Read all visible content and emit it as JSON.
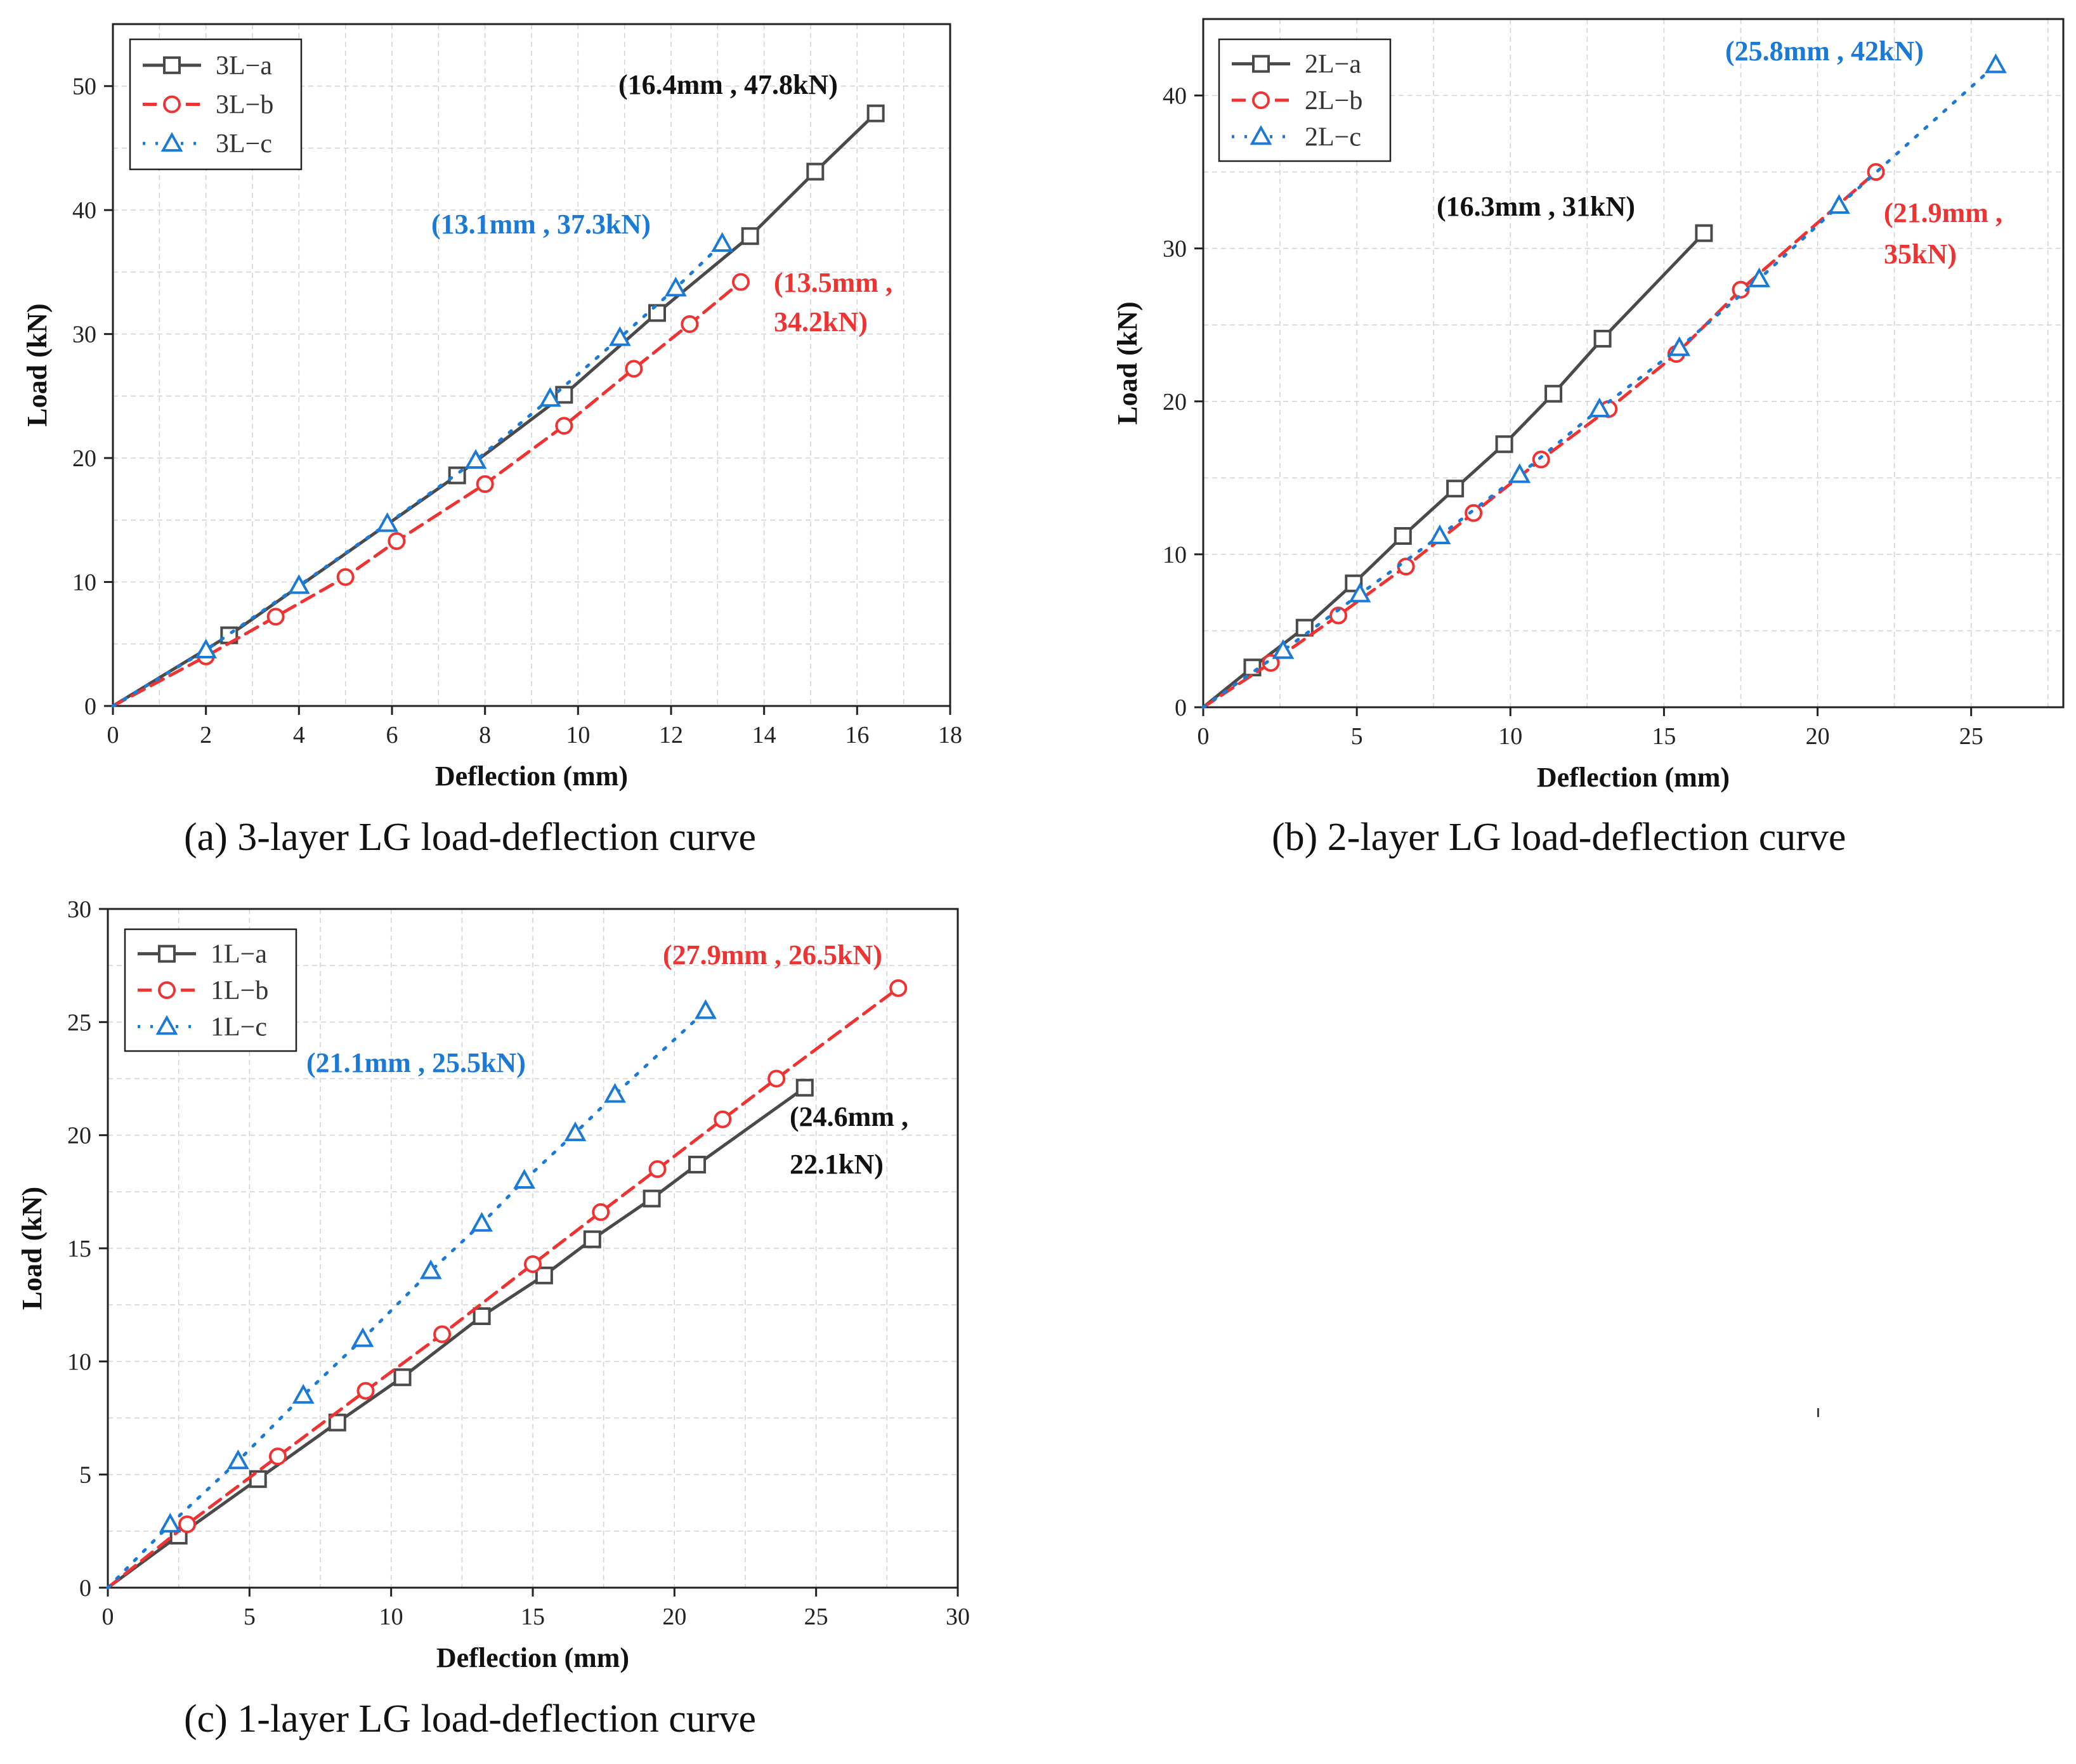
{
  "colors": {
    "a": "#4a4a4a",
    "b": "#ee3333",
    "c": "#1a7ad6",
    "text_black": "#111111"
  },
  "chart_data": [
    {
      "id": "a",
      "type": "line",
      "caption": "(a)  3-layer LG load-deflection curve",
      "xlabel": "Deflection (mm)",
      "ylabel": "Load (kN)",
      "xlim": [
        0,
        18
      ],
      "ylim": [
        0,
        55
      ],
      "xticks": [
        0,
        2,
        4,
        6,
        8,
        10,
        12,
        14,
        16,
        18
      ],
      "yticks": [
        0,
        10,
        20,
        30,
        40,
        50
      ],
      "legend_position": "top-left",
      "series": [
        {
          "key": "a",
          "name": "3L−a",
          "marker": "square",
          "dash": "solid",
          "x": [
            0,
            2.5,
            7.4,
            9.7,
            11.7,
            13.7,
            15.1,
            16.4
          ],
          "y": [
            0,
            5.7,
            18.6,
            25.1,
            31.7,
            37.9,
            43.1,
            47.8
          ]
        },
        {
          "key": "b",
          "name": "3L−b",
          "marker": "circle",
          "dash": "dashed",
          "x": [
            0,
            2,
            3.5,
            5,
            6.1,
            8,
            9.7,
            11.2,
            12.4,
            13.5
          ],
          "y": [
            0,
            4,
            7.2,
            10.4,
            13.3,
            17.9,
            22.6,
            27.2,
            30.8,
            34.2
          ]
        },
        {
          "key": "c",
          "name": "3L−c",
          "marker": "triangle",
          "dash": "dotted",
          "x": [
            0,
            2,
            4,
            5.9,
            7.8,
            9.4,
            10.9,
            12.1,
            13.1
          ],
          "y": [
            0,
            4.5,
            9.7,
            14.7,
            19.8,
            24.8,
            29.7,
            33.7,
            37.3
          ]
        }
      ],
      "annotations": [
        {
          "key": "a",
          "lines": [
            "(16.4mm , 47.8kN)"
          ]
        },
        {
          "key": "c",
          "lines": [
            "(13.1mm , 37.3kN)"
          ]
        },
        {
          "key": "b",
          "lines": [
            "(13.5mm ,",
            "34.2kN)"
          ]
        }
      ]
    },
    {
      "id": "b",
      "type": "line",
      "caption": "(b)  2-layer LG load-deflection curve",
      "xlabel": "Deflection (mm)",
      "ylabel": "Load (kN)",
      "xlim": [
        0,
        28
      ],
      "ylim": [
        0,
        45
      ],
      "xticks": [
        0,
        5,
        10,
        15,
        20,
        25
      ],
      "yticks": [
        0,
        10,
        20,
        30,
        40
      ],
      "legend_position": "top-left",
      "series": [
        {
          "key": "a",
          "name": "2L−a",
          "marker": "square",
          "dash": "solid",
          "x": [
            0,
            1.6,
            3.3,
            4.9,
            6.5,
            8.2,
            9.8,
            11.4,
            13,
            16.3
          ],
          "y": [
            0,
            2.6,
            5.2,
            8.1,
            11.2,
            14.3,
            17.2,
            20.5,
            24.1,
            31
          ]
        },
        {
          "key": "b",
          "name": "2L−b",
          "marker": "circle",
          "dash": "dashed",
          "x": [
            0,
            2.2,
            4.4,
            6.6,
            8.8,
            11,
            13.2,
            15.4,
            17.5,
            21.9
          ],
          "y": [
            0,
            2.9,
            6,
            9.2,
            12.7,
            16.2,
            19.5,
            23.1,
            27.3,
            35
          ]
        },
        {
          "key": "c",
          "name": "2L−c",
          "marker": "triangle",
          "dash": "dotted",
          "x": [
            0,
            2.6,
            5.1,
            7.7,
            10.3,
            12.9,
            15.5,
            18.1,
            20.7,
            25.8
          ],
          "y": [
            0,
            3.7,
            7.4,
            11.2,
            15.2,
            19.5,
            23.5,
            28,
            32.8,
            42
          ]
        }
      ],
      "annotations": [
        {
          "key": "a",
          "lines": [
            "(16.3mm , 31kN)"
          ]
        },
        {
          "key": "c",
          "lines": [
            "(25.8mm , 42kN)"
          ]
        },
        {
          "key": "b",
          "lines": [
            "(21.9mm ,",
            "35kN)"
          ]
        }
      ]
    },
    {
      "id": "c",
      "type": "line",
      "caption": "(c)  1-layer LG load-deflection curve",
      "xlabel": "Deflection (mm)",
      "ylabel": "Load (kN)",
      "xlim": [
        0,
        30
      ],
      "ylim": [
        0,
        30
      ],
      "xticks": [
        0,
        5,
        10,
        15,
        20,
        25,
        30
      ],
      "yticks": [
        0,
        5,
        10,
        15,
        20,
        25,
        30
      ],
      "legend_position": "top-left",
      "series": [
        {
          "key": "a",
          "name": "1L−a",
          "marker": "square",
          "dash": "solid",
          "x": [
            0,
            2.5,
            5.3,
            8.1,
            10.4,
            13.2,
            15.4,
            17.1,
            19.2,
            20.8,
            24.6
          ],
          "y": [
            0,
            2.3,
            4.8,
            7.3,
            9.3,
            12,
            13.8,
            15.4,
            17.2,
            18.7,
            22.1
          ]
        },
        {
          "key": "b",
          "name": "1L−b",
          "marker": "circle",
          "dash": "dashed",
          "x": [
            0,
            2.8,
            6,
            9.1,
            11.8,
            15,
            17.4,
            19.4,
            21.7,
            23.6,
            27.9
          ],
          "y": [
            0,
            2.8,
            5.8,
            8.7,
            11.2,
            14.3,
            16.6,
            18.5,
            20.7,
            22.5,
            26.5
          ]
        },
        {
          "key": "c",
          "name": "1L−c",
          "marker": "triangle",
          "dash": "dotted",
          "x": [
            0,
            2.2,
            4.6,
            6.9,
            9,
            11.4,
            13.2,
            14.7,
            16.5,
            17.9,
            21.1
          ],
          "y": [
            0,
            2.8,
            5.6,
            8.5,
            11,
            14,
            16.1,
            18,
            20.1,
            21.8,
            25.5
          ]
        }
      ],
      "annotations": [
        {
          "key": "b",
          "lines": [
            "(27.9mm , 26.5kN)"
          ]
        },
        {
          "key": "c",
          "lines": [
            "(21.1mm , 25.5kN)"
          ]
        },
        {
          "key": "a",
          "lines": [
            "(24.6mm ,",
            "22.1kN)"
          ]
        }
      ]
    }
  ]
}
